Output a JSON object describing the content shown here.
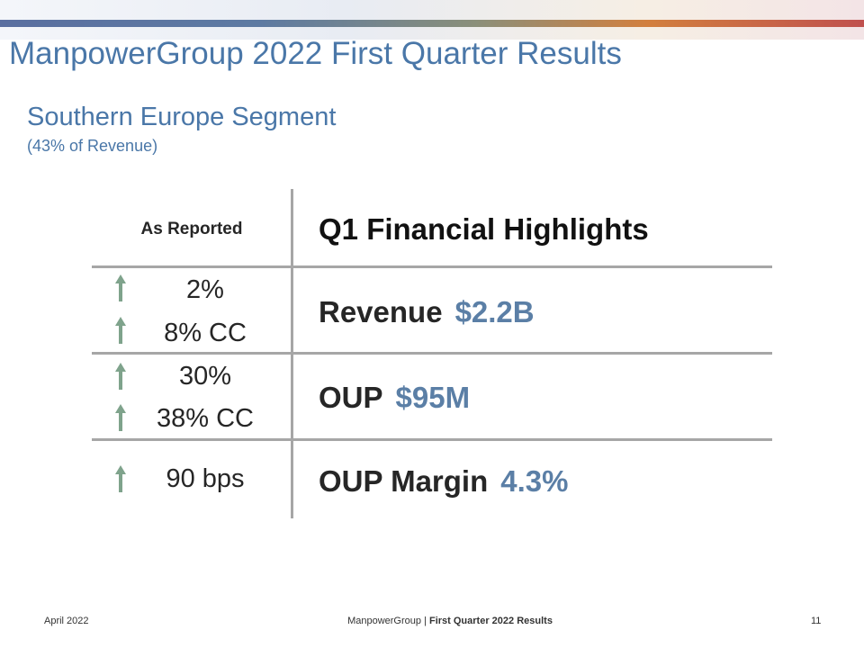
{
  "header": {
    "title": "ManpowerGroup 2022 First Quarter Results",
    "subtitle": "Southern Europe Segment",
    "subnote": "(43% of Revenue)"
  },
  "table": {
    "left_header": "As Reported",
    "right_header": "Q1 Financial Highlights",
    "rows": [
      {
        "metric": "Revenue",
        "value": "$2.2B",
        "changes": [
          "2%",
          "8% CC"
        ]
      },
      {
        "metric": "OUP",
        "value": "$95M",
        "changes": [
          "30%",
          "38% CC"
        ]
      },
      {
        "metric": "OUP Margin",
        "value": "4.3%",
        "changes": [
          "90 bps"
        ]
      }
    ],
    "arrow_icon": "up-arrow-icon",
    "arrow_color": "#7fa38c"
  },
  "footer": {
    "date": "April 2022",
    "company": "ManpowerGroup",
    "separator": "|",
    "report": "First Quarter 2022 Results",
    "page_number": "11"
  }
}
